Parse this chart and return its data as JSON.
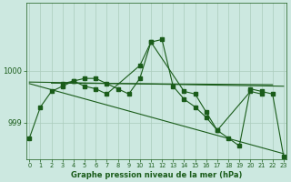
{
  "title": "Graphe pression niveau de la mer (hPa)",
  "background_color": "#cce8e0",
  "grid_color": "#aaccbb",
  "line_color": "#1a5c1a",
  "x_ticks": [
    0,
    1,
    2,
    3,
    4,
    5,
    6,
    7,
    8,
    9,
    10,
    11,
    12,
    13,
    14,
    15,
    16,
    17,
    18,
    19,
    20,
    21,
    22,
    23
  ],
  "y_ticks": [
    999,
    1000
  ],
  "ylim": [
    998.3,
    1001.3
  ],
  "xlim": [
    -0.3,
    23.3
  ],
  "main_y": [
    998.7,
    999.3,
    999.6,
    999.7,
    999.8,
    999.85,
    999.85,
    999.75,
    999.65,
    999.55,
    999.85,
    1000.55,
    1000.6,
    999.7,
    999.45,
    999.3,
    999.1,
    998.85,
    998.7,
    998.55,
    999.65,
    999.6,
    999.55,
    998.35
  ],
  "series2_x": [
    3,
    4,
    5,
    6,
    7,
    10,
    11,
    14,
    15,
    16,
    17,
    20,
    21
  ],
  "series2_y": [
    999.75,
    999.8,
    999.7,
    999.65,
    999.55,
    1000.1,
    1000.55,
    999.6,
    999.55,
    999.2,
    998.85,
    999.6,
    999.55
  ],
  "trend_x": [
    0,
    23
  ],
  "trend_y": [
    999.78,
    999.7
  ],
  "trend2_x": [
    2,
    22
  ],
  "trend2_y": [
    999.76,
    999.73
  ],
  "trend3_x": [
    0,
    23
  ],
  "trend3_y": [
    999.75,
    998.4
  ]
}
